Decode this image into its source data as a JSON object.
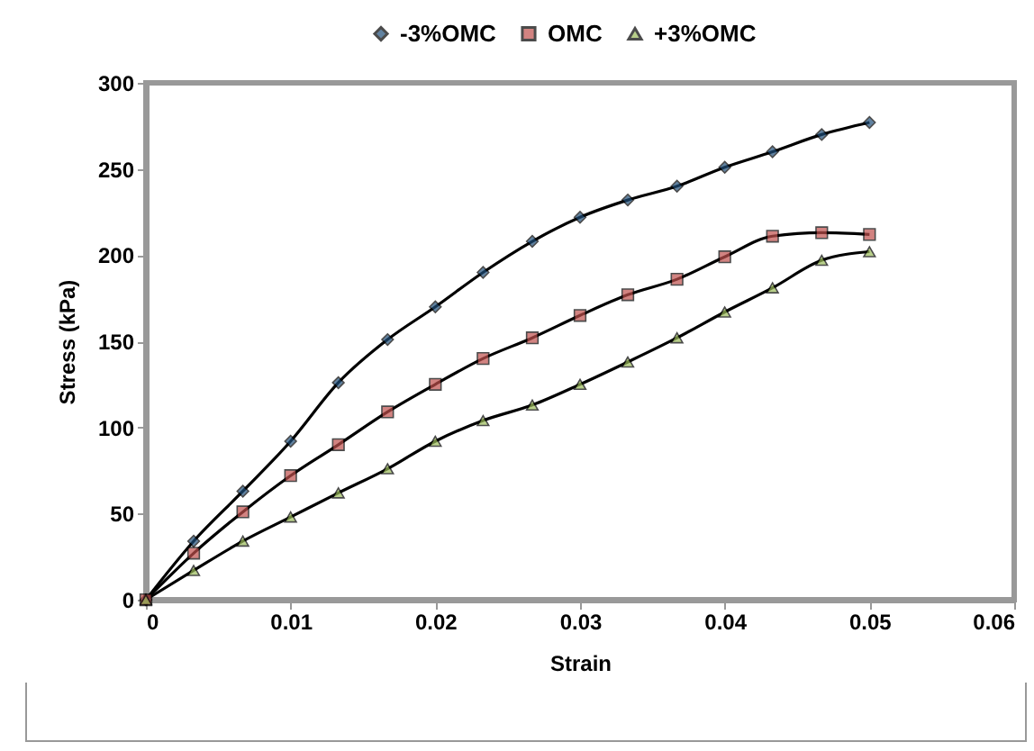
{
  "chart_data": {
    "type": "line",
    "xlabel": "Strain",
    "ylabel": "Stress (kPa)",
    "x": [
      0,
      0.0033,
      0.0067,
      0.01,
      0.0133,
      0.0167,
      0.02,
      0.0233,
      0.0267,
      0.03,
      0.0333,
      0.0367,
      0.04,
      0.0433,
      0.0467,
      0.05
    ],
    "series": [
      {
        "name": "-3%OMC",
        "color": "#1f4e79",
        "marker": "diamond",
        "values": [
          0,
          34,
          63,
          92,
          126,
          151,
          170,
          190,
          208,
          222,
          232,
          240,
          251,
          260,
          270,
          277
        ]
      },
      {
        "name": "OMC",
        "color": "#c0504d",
        "marker": "square",
        "values": [
          0,
          27,
          51,
          72,
          90,
          109,
          125,
          140,
          152,
          165,
          177,
          186,
          199,
          211,
          213,
          212
        ]
      },
      {
        "name": "+3%OMC",
        "color": "#9bbb59",
        "marker": "triangle",
        "values": [
          0,
          17,
          34,
          48,
          62,
          76,
          92,
          104,
          113,
          125,
          138,
          152,
          167,
          181,
          197,
          202
        ]
      }
    ],
    "xlim": [
      0,
      0.06
    ],
    "xticks": [
      0,
      0.01,
      0.02,
      0.03,
      0.04,
      0.05,
      0.06
    ],
    "ylim": [
      0,
      300
    ],
    "yticks": [
      0,
      50,
      100,
      150,
      200,
      250,
      300
    ],
    "grid": false,
    "legend": "top",
    "line_style": "solid"
  }
}
